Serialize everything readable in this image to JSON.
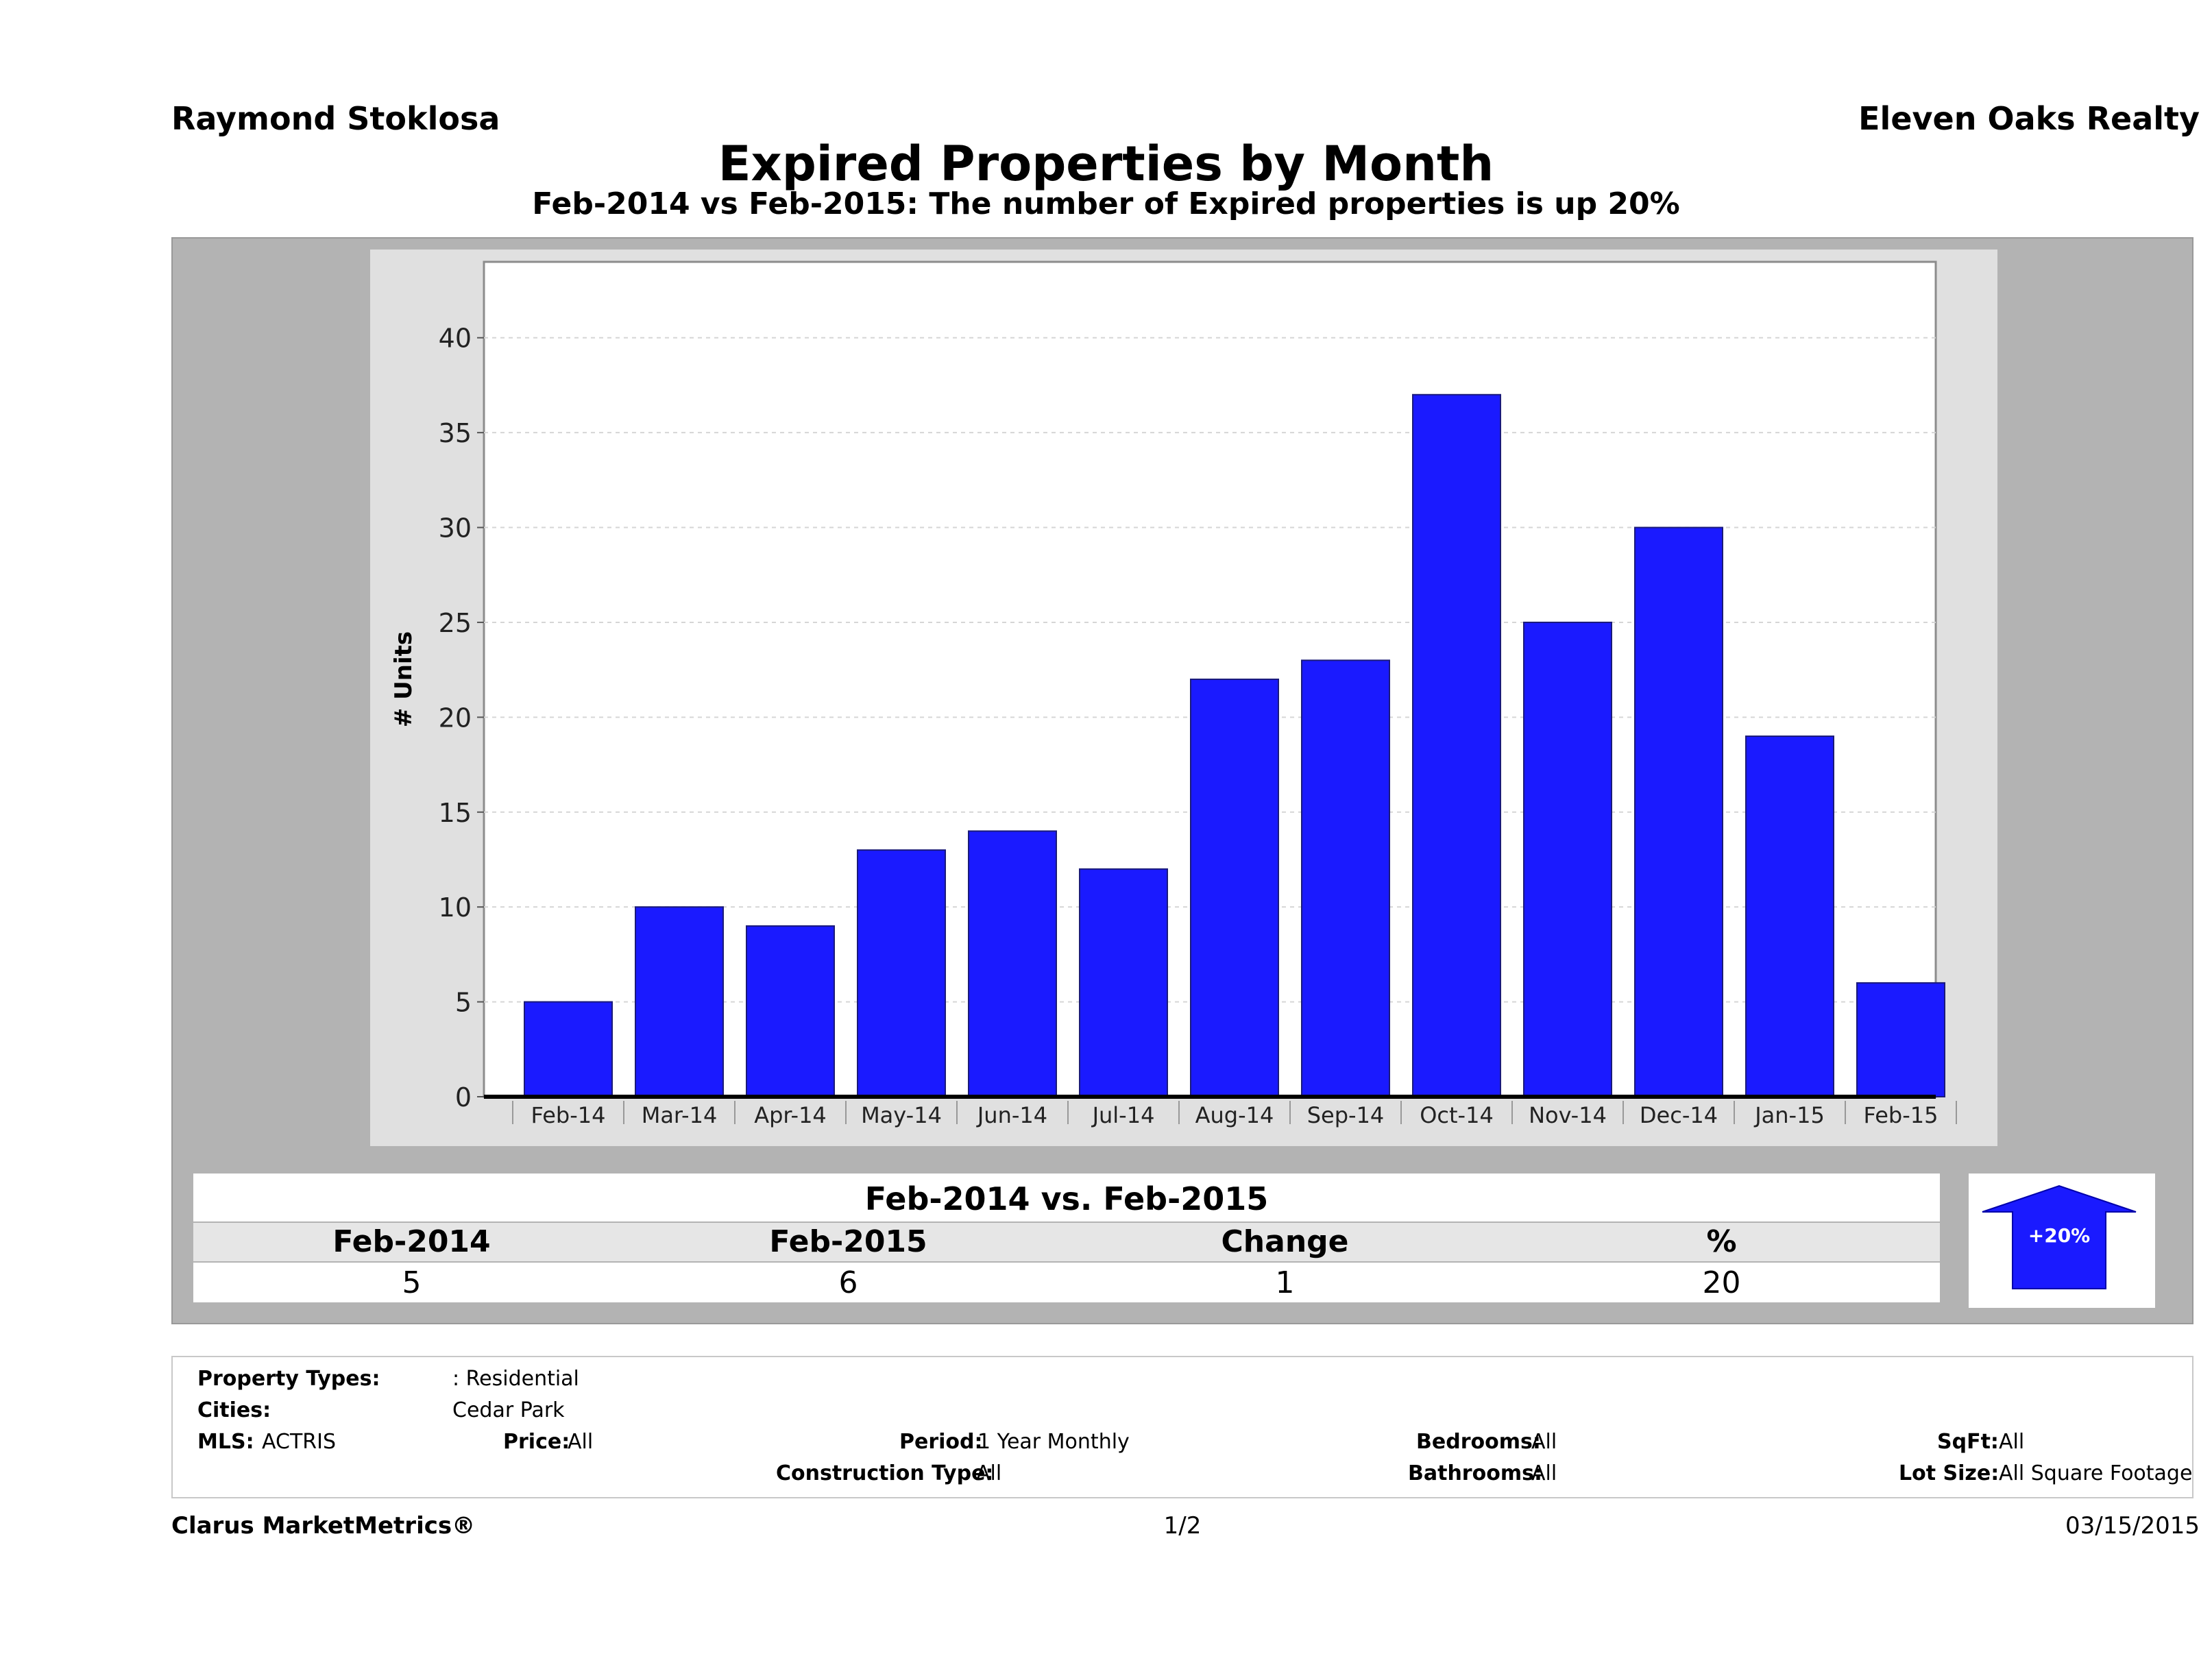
{
  "header": {
    "agent": "Raymond Stoklosa",
    "company": "Eleven Oaks Realty",
    "title": "Expired Properties by Month",
    "subtitle": "Feb-2014 vs Feb-2015: The number of Expired  properties is up 20%"
  },
  "chart_data": {
    "type": "bar",
    "categories": [
      "Feb-14",
      "Mar-14",
      "Apr-14",
      "May-14",
      "Jun-14",
      "Jul-14",
      "Aug-14",
      "Sep-14",
      "Oct-14",
      "Nov-14",
      "Dec-14",
      "Jan-15",
      "Feb-15"
    ],
    "values": [
      5,
      10,
      9,
      13,
      14,
      12,
      22,
      23,
      37,
      25,
      30,
      19,
      6
    ],
    "ylabel": "# Units",
    "ylim": [
      0,
      44
    ],
    "yticks": [
      0,
      5,
      10,
      15,
      20,
      25,
      30,
      35,
      40
    ],
    "grid": true,
    "bar_color": "#1a1aff"
  },
  "summary": {
    "title": "Feb-2014 vs. Feb-2015",
    "headers": [
      "Feb-2014",
      "Feb-2015",
      "Change",
      "%"
    ],
    "values": [
      "5",
      "6",
      "1",
      "20"
    ],
    "badge": "+20%",
    "badge_color": "#1a1aff"
  },
  "filters": {
    "property_types_label": "Property Types:",
    "property_types": ": Residential",
    "cities_label": "Cities:",
    "cities": "Cedar Park",
    "mls_label": "MLS:",
    "mls": "ACTRIS",
    "price_label": "Price:",
    "price": "All",
    "period_label": "Period:",
    "period": "1 Year Monthly",
    "construction_label": "Construction Type:",
    "construction": "All",
    "bedrooms_label": "Bedrooms:",
    "bedrooms": "All",
    "bathrooms_label": "Bathrooms:",
    "bathrooms": "All",
    "sqft_label": "SqFt:",
    "sqft": "All",
    "lotsize_label": "Lot Size:",
    "lotsize": "All Square Footage"
  },
  "footer": {
    "brand": "Clarus MarketMetrics®",
    "page": "1/2",
    "date": "03/15/2015"
  }
}
